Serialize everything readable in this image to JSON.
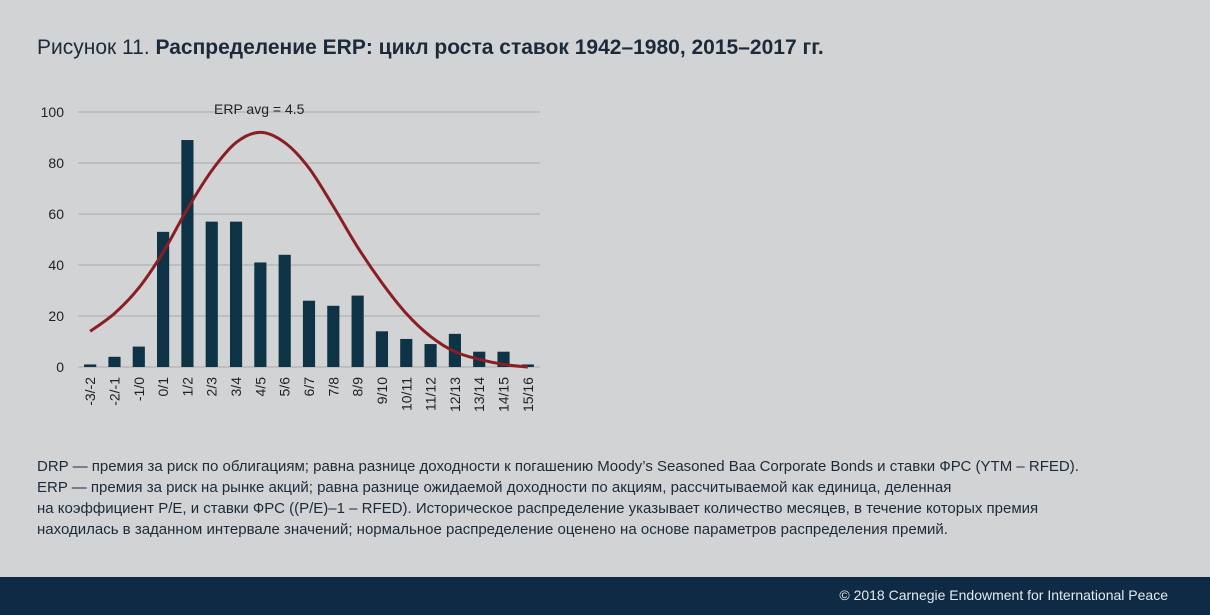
{
  "title": {
    "prefix": "Рисунок 11.",
    "main": "Распределение ERP: цикл роста ставок 1942–1980, 2015–2017 гг."
  },
  "chart_data": {
    "type": "bar",
    "categories": [
      "-3/-2",
      "-2/-1",
      "-1/0",
      "0/1",
      "1/2",
      "2/3",
      "3/4",
      "4/5",
      "5/6",
      "6/7",
      "7/8",
      "8/9",
      "9/10",
      "10/11",
      "11/12",
      "12/13",
      "13/14",
      "14/15",
      "15/16"
    ],
    "values": [
      1,
      4,
      8,
      53,
      89,
      57,
      57,
      41,
      44,
      26,
      24,
      28,
      14,
      11,
      9,
      13,
      6,
      6,
      1
    ],
    "yticks": [
      0,
      20,
      40,
      60,
      80,
      100
    ],
    "ylim": [
      0,
      100
    ],
    "annotation": "ERP avg = 4.5",
    "curve": {
      "type": "line",
      "name": "normal distribution",
      "x": [
        "-3/-2",
        "-2/-1",
        "-1/0",
        "0/1",
        "1/2",
        "2/3",
        "3/4",
        "4/5",
        "5/6",
        "6/7",
        "7/8",
        "8/9",
        "9/10",
        "10/11",
        "11/12",
        "12/13",
        "13/14",
        "14/15",
        "15/16"
      ],
      "values": [
        14,
        21,
        31,
        45,
        62,
        77,
        88,
        92,
        88,
        78,
        63,
        47,
        33,
        21,
        12,
        6,
        3,
        1,
        0
      ]
    },
    "colors": {
      "bars": "#0e3346",
      "curve": "#8b1e22",
      "grid": "#a9aaac"
    }
  },
  "notes": [
    "DRP — премия за риск по облигациям; равна разнице доходности к погашению Moody’s Seasoned Baa Corporate Bonds и ставки ФРС (YTM – RFED).",
    "ERP — премия за риск на рынке акций; равна разнице ожидаемой доходности по акциям, рассчитываемой как единица, деленная",
    "на коэффициент P/E, и ставки ФРС ((P/E)–1 – RFED). Историческое распределение указывает количество месяцев, в течение которых премия",
    "находилась в заданном интервале значений; нормальное распределение оценено на основе параметров распределения премий."
  ],
  "footer": "© 2018 Carnegie Endowment for International Peace"
}
